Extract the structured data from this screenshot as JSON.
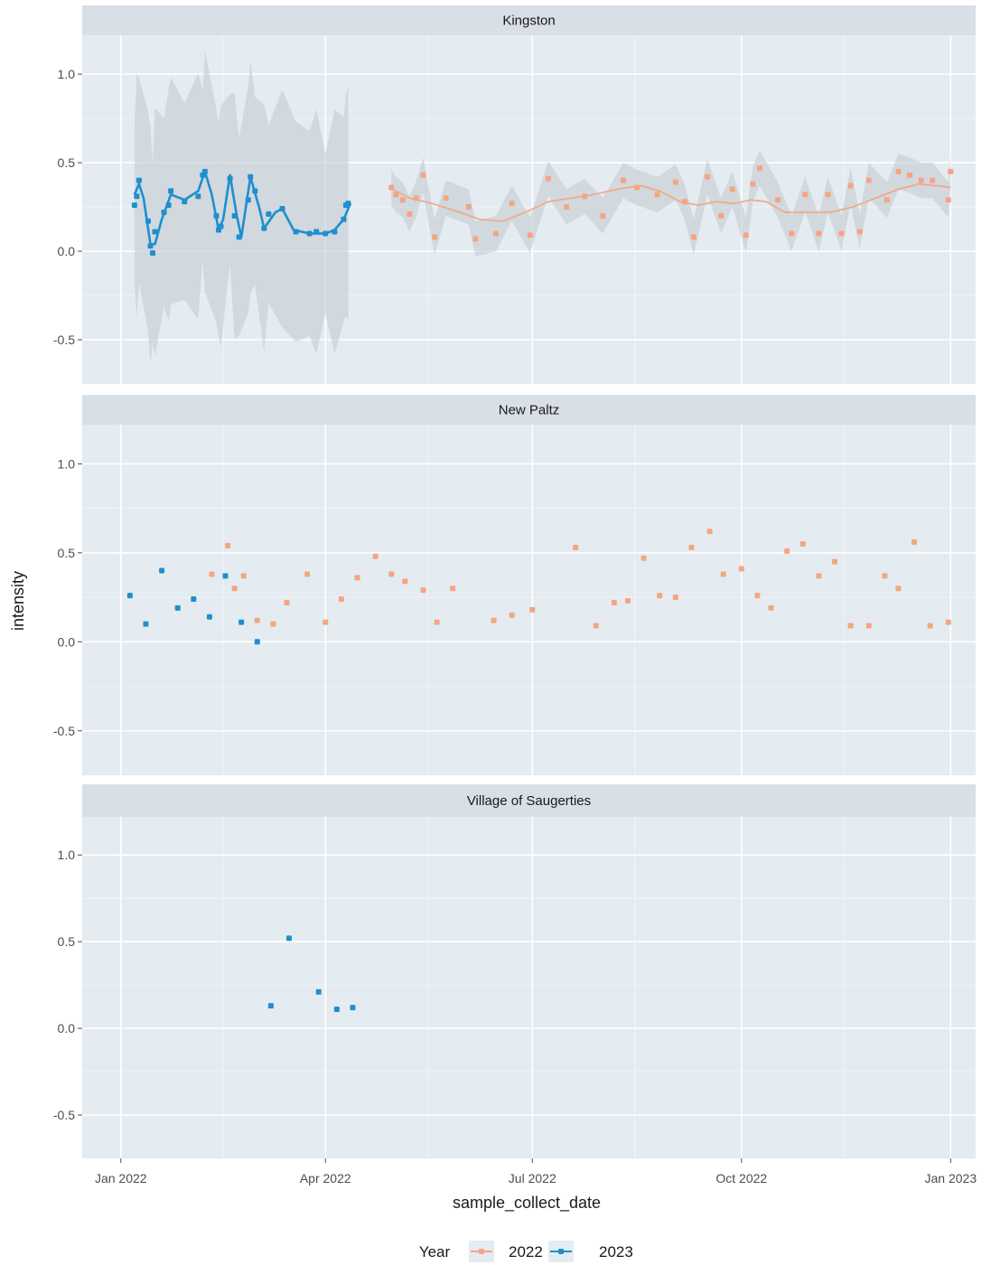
{
  "chart_data": {
    "type": "scatter",
    "xlabel": "sample_collect_date",
    "ylabel": "intensity",
    "x_ticks": [
      "Jan 2022",
      "Apr 2022",
      "Jul 2022",
      "Oct 2022",
      "Jan 2023"
    ],
    "x_tick_dates": [
      "2022-01-01",
      "2022-04-01",
      "2022-07-01",
      "2022-10-01",
      "2023-01-01"
    ],
    "xlim": [
      "2021-12-15",
      "2023-01-12"
    ],
    "y_ticks": [
      "1.0",
      "0.5",
      "0.0",
      "-0.5"
    ],
    "y_tick_values": [
      1.0,
      0.5,
      0.0,
      -0.5
    ],
    "ylim": [
      -0.75,
      1.22
    ],
    "grid": true,
    "legend": {
      "title": "Year",
      "position": "bottom",
      "entries": [
        {
          "label": "2022",
          "color": "#f4a582"
        },
        {
          "label": "2023",
          "color": "#1f8fce"
        }
      ]
    },
    "panels": [
      {
        "title": "Kingston",
        "series": [
          {
            "name": "2023",
            "color": "#1f8fce",
            "smooth": true,
            "points": [
              [
                "2022-01-07",
                0.26
              ],
              [
                "2022-01-08",
                0.31
              ],
              [
                "2022-01-09",
                0.4
              ],
              [
                "2022-01-13",
                0.17
              ],
              [
                "2022-01-14",
                0.03
              ],
              [
                "2022-01-15",
                -0.01
              ],
              [
                "2022-01-16",
                0.11
              ],
              [
                "2022-01-20",
                0.22
              ],
              [
                "2022-01-22",
                0.26
              ],
              [
                "2022-01-23",
                0.34
              ],
              [
                "2022-01-29",
                0.28
              ],
              [
                "2022-02-04",
                0.31
              ],
              [
                "2022-02-06",
                0.43
              ],
              [
                "2022-02-07",
                0.45
              ],
              [
                "2022-02-12",
                0.2
              ],
              [
                "2022-02-13",
                0.12
              ],
              [
                "2022-02-14",
                0.14
              ],
              [
                "2022-02-18",
                0.41
              ],
              [
                "2022-02-20",
                0.2
              ],
              [
                "2022-02-22",
                0.08
              ],
              [
                "2022-02-26",
                0.29
              ],
              [
                "2022-02-27",
                0.42
              ],
              [
                "2022-03-01",
                0.34
              ],
              [
                "2022-03-05",
                0.13
              ],
              [
                "2022-03-07",
                0.21
              ],
              [
                "2022-03-13",
                0.24
              ],
              [
                "2022-03-19",
                0.11
              ],
              [
                "2022-03-25",
                0.1
              ],
              [
                "2022-03-28",
                0.11
              ],
              [
                "2022-04-01",
                0.1
              ],
              [
                "2022-04-05",
                0.11
              ],
              [
                "2022-04-09",
                0.18
              ],
              [
                "2022-04-10",
                0.26
              ],
              [
                "2022-04-11",
                0.27
              ]
            ],
            "line": [
              [
                "2022-01-07",
                0.32
              ],
              [
                "2022-01-09",
                0.38
              ],
              [
                "2022-01-11",
                0.3
              ],
              [
                "2022-01-14",
                0.04
              ],
              [
                "2022-01-16",
                0.04
              ],
              [
                "2022-01-19",
                0.18
              ],
              [
                "2022-01-23",
                0.32
              ],
              [
                "2022-01-29",
                0.29
              ],
              [
                "2022-02-04",
                0.34
              ],
              [
                "2022-02-07",
                0.45
              ],
              [
                "2022-02-10",
                0.32
              ],
              [
                "2022-02-13",
                0.12
              ],
              [
                "2022-02-15",
                0.18
              ],
              [
                "2022-02-18",
                0.43
              ],
              [
                "2022-02-21",
                0.2
              ],
              [
                "2022-02-23",
                0.08
              ],
              [
                "2022-02-27",
                0.42
              ],
              [
                "2022-03-03",
                0.24
              ],
              [
                "2022-03-05",
                0.13
              ],
              [
                "2022-03-10",
                0.22
              ],
              [
                "2022-03-13",
                0.24
              ],
              [
                "2022-03-18",
                0.12
              ],
              [
                "2022-03-25",
                0.1
              ],
              [
                "2022-04-01",
                0.1
              ],
              [
                "2022-04-05",
                0.12
              ],
              [
                "2022-04-09",
                0.18
              ],
              [
                "2022-04-12",
                0.27
              ]
            ]
          },
          {
            "name": "2022",
            "color": "#f4a582",
            "smooth": true,
            "points": [
              [
                "2022-04-30",
                0.36
              ],
              [
                "2022-05-02",
                0.32
              ],
              [
                "2022-05-05",
                0.29
              ],
              [
                "2022-05-08",
                0.21
              ],
              [
                "2022-05-11",
                0.3
              ],
              [
                "2022-05-14",
                0.43
              ],
              [
                "2022-05-19",
                0.08
              ],
              [
                "2022-05-24",
                0.3
              ],
              [
                "2022-06-03",
                0.25
              ],
              [
                "2022-06-06",
                0.07
              ],
              [
                "2022-06-15",
                0.1
              ],
              [
                "2022-06-22",
                0.27
              ],
              [
                "2022-06-30",
                0.09
              ],
              [
                "2022-07-08",
                0.41
              ],
              [
                "2022-07-16",
                0.25
              ],
              [
                "2022-07-24",
                0.31
              ],
              [
                "2022-08-01",
                0.2
              ],
              [
                "2022-08-10",
                0.4
              ],
              [
                "2022-08-16",
                0.36
              ],
              [
                "2022-08-25",
                0.32
              ],
              [
                "2022-09-02",
                0.39
              ],
              [
                "2022-09-06",
                0.28
              ],
              [
                "2022-09-10",
                0.08
              ],
              [
                "2022-09-16",
                0.42
              ],
              [
                "2022-09-22",
                0.2
              ],
              [
                "2022-09-27",
                0.35
              ],
              [
                "2022-10-03",
                0.09
              ],
              [
                "2022-10-06",
                0.38
              ],
              [
                "2022-10-09",
                0.47
              ],
              [
                "2022-10-17",
                0.29
              ],
              [
                "2022-10-23",
                0.1
              ],
              [
                "2022-10-29",
                0.32
              ],
              [
                "2022-11-04",
                0.1
              ],
              [
                "2022-11-08",
                0.32
              ],
              [
                "2022-11-14",
                0.1
              ],
              [
                "2022-11-18",
                0.37
              ],
              [
                "2022-11-22",
                0.11
              ],
              [
                "2022-11-26",
                0.4
              ],
              [
                "2022-12-04",
                0.29
              ],
              [
                "2022-12-09",
                0.45
              ],
              [
                "2022-12-14",
                0.43
              ],
              [
                "2022-12-19",
                0.4
              ],
              [
                "2022-12-24",
                0.4
              ],
              [
                "2022-12-31",
                0.29
              ],
              [
                "2023-01-01",
                0.45
              ]
            ],
            "line": [
              [
                "2022-04-29",
                0.36
              ],
              [
                "2022-05-08",
                0.3
              ],
              [
                "2022-05-18",
                0.27
              ],
              [
                "2022-05-30",
                0.22
              ],
              [
                "2022-06-08",
                0.18
              ],
              [
                "2022-06-18",
                0.17
              ],
              [
                "2022-06-28",
                0.22
              ],
              [
                "2022-07-08",
                0.28
              ],
              [
                "2022-07-18",
                0.3
              ],
              [
                "2022-07-28",
                0.32
              ],
              [
                "2022-08-07",
                0.35
              ],
              [
                "2022-08-18",
                0.37
              ],
              [
                "2022-08-26",
                0.34
              ],
              [
                "2022-09-04",
                0.28
              ],
              [
                "2022-09-12",
                0.26
              ],
              [
                "2022-09-20",
                0.28
              ],
              [
                "2022-09-28",
                0.27
              ],
              [
                "2022-10-05",
                0.29
              ],
              [
                "2022-10-12",
                0.28
              ],
              [
                "2022-10-20",
                0.22
              ],
              [
                "2022-10-30",
                0.22
              ],
              [
                "2022-11-09",
                0.22
              ],
              [
                "2022-11-19",
                0.25
              ],
              [
                "2022-11-29",
                0.3
              ],
              [
                "2022-12-09",
                0.35
              ],
              [
                "2022-12-18",
                0.38
              ],
              [
                "2022-12-26",
                0.37
              ],
              [
                "2023-01-01",
                0.36
              ]
            ]
          }
        ]
      },
      {
        "title": "New Paltz",
        "series": [
          {
            "name": "2023",
            "color": "#1f8fce",
            "points": [
              [
                "2022-01-05",
                0.26
              ],
              [
                "2022-01-12",
                0.1
              ],
              [
                "2022-01-19",
                0.4
              ],
              [
                "2022-01-26",
                0.19
              ],
              [
                "2022-02-02",
                0.24
              ],
              [
                "2022-02-09",
                0.14
              ],
              [
                "2022-02-16",
                0.37
              ],
              [
                "2022-02-23",
                0.11
              ],
              [
                "2022-03-02",
                0.0
              ]
            ]
          },
          {
            "name": "2022",
            "color": "#f4a582",
            "points": [
              [
                "2022-02-10",
                0.38
              ],
              [
                "2022-02-17",
                0.54
              ],
              [
                "2022-02-20",
                0.3
              ],
              [
                "2022-02-24",
                0.37
              ],
              [
                "2022-03-02",
                0.12
              ],
              [
                "2022-03-09",
                0.1
              ],
              [
                "2022-03-15",
                0.22
              ],
              [
                "2022-03-24",
                0.38
              ],
              [
                "2022-04-01",
                0.11
              ],
              [
                "2022-04-08",
                0.24
              ],
              [
                "2022-04-15",
                0.36
              ],
              [
                "2022-04-23",
                0.48
              ],
              [
                "2022-04-30",
                0.38
              ],
              [
                "2022-05-06",
                0.34
              ],
              [
                "2022-05-14",
                0.29
              ],
              [
                "2022-05-20",
                0.11
              ],
              [
                "2022-05-27",
                0.3
              ],
              [
                "2022-06-14",
                0.12
              ],
              [
                "2022-06-22",
                0.15
              ],
              [
                "2022-07-01",
                0.18
              ],
              [
                "2022-07-20",
                0.53
              ],
              [
                "2022-07-29",
                0.09
              ],
              [
                "2022-08-06",
                0.22
              ],
              [
                "2022-08-12",
                0.23
              ],
              [
                "2022-08-19",
                0.47
              ],
              [
                "2022-08-26",
                0.26
              ],
              [
                "2022-09-02",
                0.25
              ],
              [
                "2022-09-09",
                0.53
              ],
              [
                "2022-09-17",
                0.62
              ],
              [
                "2022-09-23",
                0.38
              ],
              [
                "2022-10-01",
                0.41
              ],
              [
                "2022-10-08",
                0.26
              ],
              [
                "2022-10-14",
                0.19
              ],
              [
                "2022-10-21",
                0.51
              ],
              [
                "2022-10-28",
                0.55
              ],
              [
                "2022-11-04",
                0.37
              ],
              [
                "2022-11-11",
                0.45
              ],
              [
                "2022-11-18",
                0.09
              ],
              [
                "2022-11-26",
                0.09
              ],
              [
                "2022-12-03",
                0.37
              ],
              [
                "2022-12-09",
                0.3
              ],
              [
                "2022-12-16",
                0.56
              ],
              [
                "2022-12-23",
                0.09
              ],
              [
                "2022-12-31",
                0.11
              ]
            ]
          }
        ]
      },
      {
        "title": "Village of Saugerties",
        "series": [
          {
            "name": "2023",
            "color": "#1f8fce",
            "points": [
              [
                "2022-03-08",
                0.13
              ],
              [
                "2022-03-16",
                0.52
              ],
              [
                "2022-03-29",
                0.21
              ],
              [
                "2022-04-06",
                0.11
              ],
              [
                "2022-04-13",
                0.12
              ]
            ]
          }
        ]
      }
    ]
  }
}
